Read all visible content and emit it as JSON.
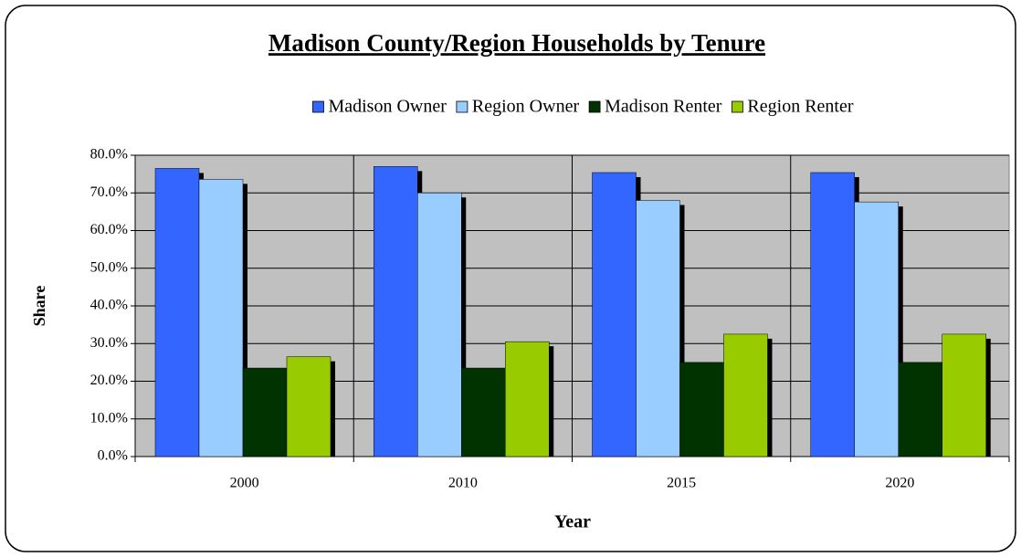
{
  "chart_data": {
    "type": "bar",
    "title": "Madison County/Region Households by Tenure",
    "x_label": "Year",
    "y_label": "Share",
    "categories": [
      "2000",
      "2010",
      "2015",
      "2020"
    ],
    "series": [
      {
        "name": "Madison Owner",
        "color": "#3366ff",
        "values": [
          76.5,
          77.0,
          75.4,
          75.4
        ]
      },
      {
        "name": "Region Owner",
        "color": "#99ccff",
        "values": [
          73.6,
          70.0,
          68.0,
          67.6
        ]
      },
      {
        "name": "Madison Renter",
        "color": "#003300",
        "values": [
          23.5,
          23.5,
          25.0,
          25.0
        ]
      },
      {
        "name": "Region Renter",
        "color": "#99cc00",
        "values": [
          26.5,
          30.5,
          32.5,
          32.5
        ]
      }
    ],
    "ylim": [
      0,
      80
    ],
    "yticks": [
      {
        "value": 0,
        "label": "0.0%"
      },
      {
        "value": 10,
        "label": "10.0%"
      },
      {
        "value": 20,
        "label": "20.0%"
      },
      {
        "value": 30,
        "label": "30.0%"
      },
      {
        "value": 40,
        "label": "40.0%"
      },
      {
        "value": 50,
        "label": "50.0%"
      },
      {
        "value": 60,
        "label": "60.0%"
      },
      {
        "value": 70,
        "label": "70.0%"
      },
      {
        "value": 80,
        "label": "80.0%"
      }
    ],
    "grid": true,
    "legend": "top"
  }
}
